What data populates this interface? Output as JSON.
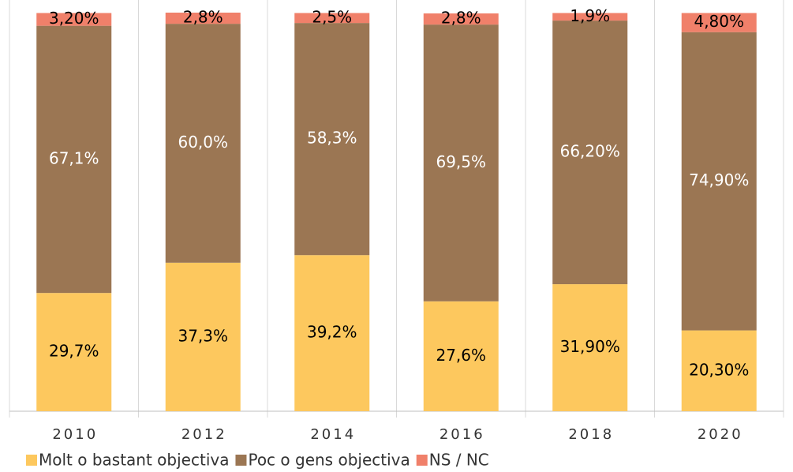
{
  "chart_data": {
    "type": "stacked_bar",
    "categories": [
      "2010",
      "2012",
      "2014",
      "2016",
      "2018",
      "2020"
    ],
    "series": [
      {
        "name": "Molt o bastant objectiva",
        "color": "#fdc85e",
        "text_color": "#000000",
        "values": [
          29.7,
          37.3,
          39.2,
          27.6,
          31.9,
          20.3
        ],
        "value_labels": [
          "29,7%",
          "37,3%",
          "39,2%",
          "27,6%",
          "31,90%",
          "20,30%"
        ]
      },
      {
        "name": "Poc o gens objectiva",
        "color": "#9b7653",
        "text_color": "#ffffff",
        "values": [
          67.1,
          60.0,
          58.3,
          69.5,
          66.2,
          74.9
        ],
        "value_labels": [
          "67,1%",
          "60,0%",
          "58,3%",
          "69,5%",
          "66,20%",
          "74,90%"
        ]
      },
      {
        "name": "NS / NC",
        "color": "#f0806a",
        "text_color": "#000000",
        "values": [
          3.2,
          2.8,
          2.5,
          2.8,
          1.9,
          4.8
        ],
        "value_labels": [
          "3,20%",
          "2,8%",
          "2,5%",
          "2,8%",
          "1,9%",
          "4,80%"
        ]
      }
    ]
  }
}
